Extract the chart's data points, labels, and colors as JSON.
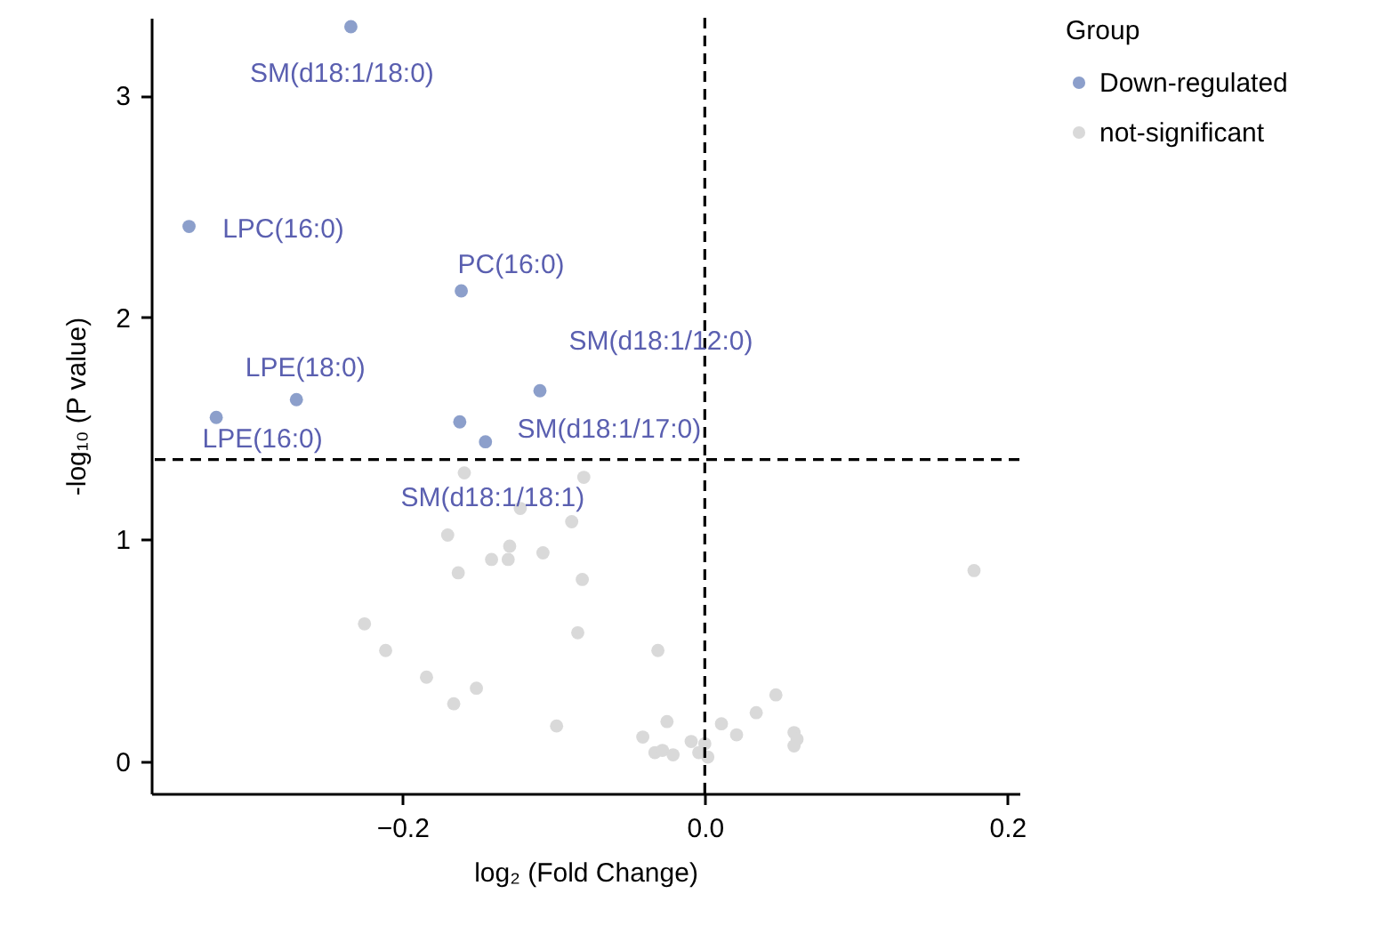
{
  "chart_data": {
    "type": "scatter",
    "xlabel": "log₂ (Fold Change)",
    "ylabel": "-log₁₀ (P value)",
    "legend_title": "Group",
    "legend": "top right",
    "marker": "circle",
    "grid": false,
    "xlim": [
      -0.366,
      0.208
    ],
    "ylim": [
      -0.144,
      3.35
    ],
    "xticks": [
      {
        "value": -0.2,
        "label": "−0.2"
      },
      {
        "value": 0,
        "label": "0.0"
      },
      0.2
    ],
    "yticks": [
      0,
      1,
      2,
      3
    ],
    "series": [
      {
        "name": "Down-regulated",
        "color": "#8c9fcb",
        "x": [
          -0.234,
          -0.341,
          -0.161,
          -0.109,
          -0.27,
          -0.323,
          -0.162,
          -0.145
        ],
        "values": [
          3.31,
          2.41,
          2.12,
          1.67,
          1.63,
          1.55,
          1.53,
          1.44
        ]
      },
      {
        "name": "not-significant",
        "color": "#d9d9d9",
        "x": [
          -0.159,
          -0.08,
          -0.122,
          -0.088,
          -0.17,
          -0.129,
          -0.141,
          -0.13,
          -0.107,
          -0.163,
          -0.081,
          -0.225,
          -0.084,
          -0.211,
          -0.031,
          -0.184,
          -0.151,
          -0.166,
          -0.098,
          -0.041,
          -0.025,
          -0.033,
          -0.028,
          -0.021,
          -0.009,
          0.0,
          -0.004,
          0.002,
          0.011,
          0.021,
          0.178,
          0.047,
          0.034,
          0.059,
          0.061,
          0.059
        ],
        "values": [
          1.3,
          1.28,
          1.14,
          1.08,
          1.02,
          0.97,
          0.91,
          0.91,
          0.94,
          0.85,
          0.82,
          0.62,
          0.58,
          0.5,
          0.5,
          0.38,
          0.33,
          0.26,
          0.16,
          0.11,
          0.18,
          0.04,
          0.05,
          0.03,
          0.09,
          0.08,
          0.04,
          0.02,
          0.17,
          0.12,
          0.86,
          0.3,
          0.22,
          0.13,
          0.1,
          0.07
        ]
      }
    ],
    "ref_lines": [
      {
        "axis": "x",
        "value": 0,
        "line_style": "dashed"
      },
      {
        "axis": "y",
        "value": 1.36,
        "line_style": "dashed"
      }
    ],
    "annotations": [
      {
        "text": "SM(d18:1/18:0)",
        "x": -0.234,
        "y": 3.31
      },
      {
        "text": "LPC(16:0)",
        "x": -0.341,
        "y": 2.41
      },
      {
        "text": "PC(16:0)",
        "x": -0.161,
        "y": 2.12
      },
      {
        "text": "SM(d18:1/12:0)",
        "x": -0.109,
        "y": 1.67
      },
      {
        "text": "LPE(18:0)",
        "x": -0.27,
        "y": 1.63
      },
      {
        "text": "LPE(16:0)",
        "x": -0.323,
        "y": 1.55
      },
      {
        "text": "SM(d18:1/17:0)",
        "x": -0.162,
        "y": 1.53
      },
      {
        "text": "SM(d18:1/18:1)",
        "x": -0.145,
        "y": 1.44
      }
    ]
  }
}
